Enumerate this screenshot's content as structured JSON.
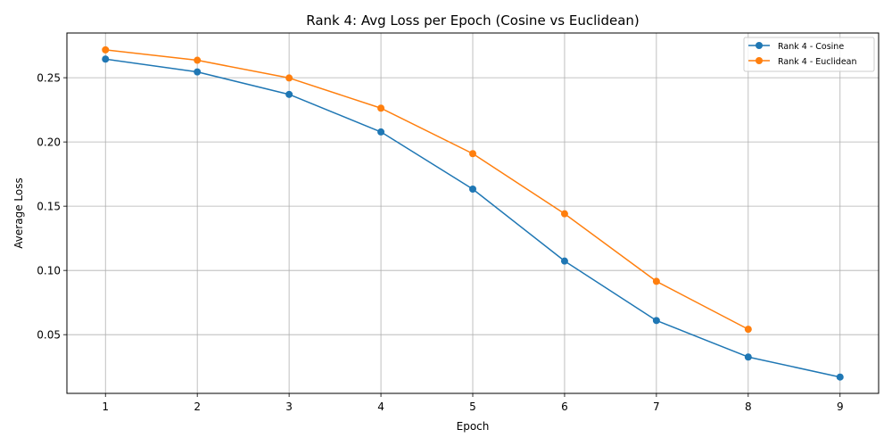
{
  "chart_data": {
    "type": "line",
    "title": "Rank 4: Avg Loss per Epoch (Cosine vs Euclidean)",
    "xlabel": "Epoch",
    "ylabel": "Average Loss",
    "x_ticks": [
      "1",
      "2",
      "3",
      "4",
      "5",
      "6",
      "7",
      "8",
      "9"
    ],
    "y_ticks": [
      "0.05",
      "0.10",
      "0.15",
      "0.20",
      "0.25"
    ],
    "xlim": [
      0.58,
      9.42
    ],
    "ylim": [
      0.0043,
      0.2848
    ],
    "grid": true,
    "legend_position": "top-right",
    "series": [
      {
        "name": "Rank 4 - Cosine",
        "color": "#1f77b4",
        "x": [
          1,
          2,
          3,
          4,
          5,
          6,
          7,
          8,
          9
        ],
        "values": [
          0.2645,
          0.2545,
          0.237,
          0.2078,
          0.1633,
          0.1073,
          0.061,
          0.0326,
          0.017
        ]
      },
      {
        "name": "Rank 4 - Euclidean",
        "color": "#ff7f0e",
        "x": [
          1,
          2,
          3,
          4,
          5,
          6,
          7,
          8
        ],
        "values": [
          0.2717,
          0.2636,
          0.2498,
          0.2263,
          0.1909,
          0.1441,
          0.0915,
          0.0542
        ]
      }
    ]
  }
}
